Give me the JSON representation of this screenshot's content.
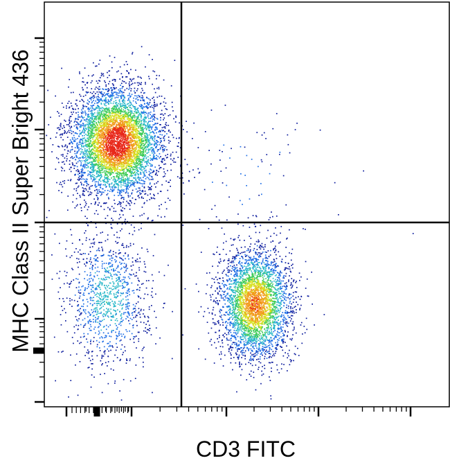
{
  "chart_data": {
    "type": "scatter",
    "subtype": "flow-cytometry-density-dot-plot",
    "title": "",
    "xlabel": "CD3 FITC",
    "ylabel": "MHC Class II Super Bright 436",
    "x_scale": "log",
    "y_scale": "log",
    "tick_labels": "none printed",
    "quadrant_gates": true,
    "grid": false,
    "legend": "none",
    "density_colormap": [
      "#0a1a9c",
      "#1e6ee6",
      "#2bb8c9",
      "#3fcc5a",
      "#d7e021",
      "#f29a1c",
      "#e8281a"
    ],
    "populations": [
      {
        "quadrant": "upper-left",
        "cd3": "negative",
        "mhc_class_ii": "positive",
        "relative_size": "large",
        "peak_density": "highest"
      },
      {
        "quadrant": "lower-left",
        "cd3": "negative",
        "mhc_class_ii": "negative",
        "relative_size": "small",
        "peak_density": "low"
      },
      {
        "quadrant": "lower-right",
        "cd3": "positive",
        "mhc_class_ii": "negative",
        "relative_size": "large",
        "peak_density": "high"
      },
      {
        "quadrant": "upper-right",
        "cd3": "positive",
        "mhc_class_ii": "positive",
        "relative_size": "sparse",
        "peak_density": "very low"
      }
    ]
  }
}
